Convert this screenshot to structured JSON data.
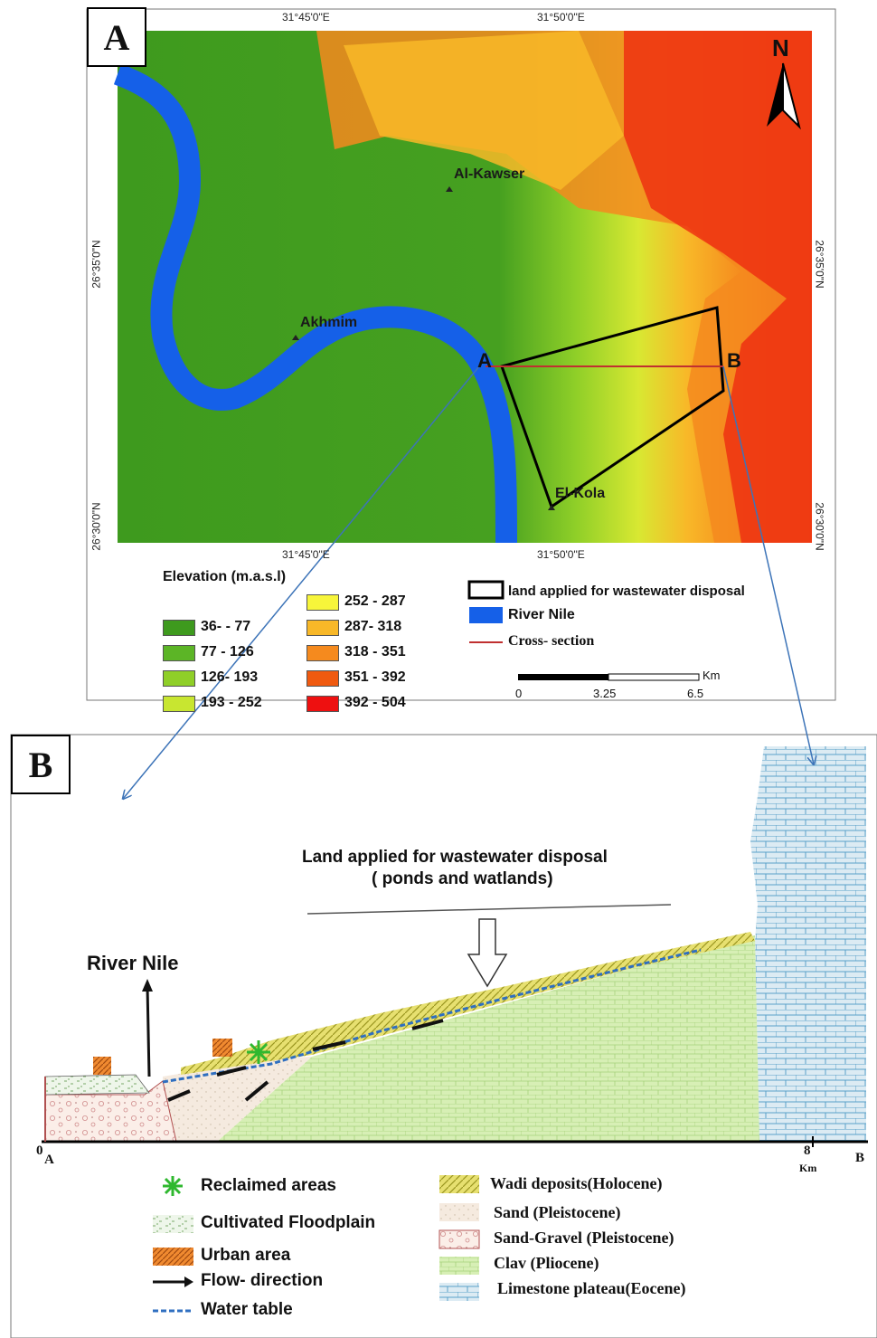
{
  "panels": {
    "a_tag": "A",
    "b_tag": "B"
  },
  "map": {
    "lon_ticks": [
      "31°45'0\"E",
      "31°50'0\"E"
    ],
    "lat_ticks": [
      "26°35'0\"N",
      "26°30'0\"N"
    ],
    "places": [
      "Al-Kawser",
      "Akhmim",
      "El-Kola"
    ],
    "north_label": "N",
    "section_points": [
      "A",
      "B"
    ],
    "colors": {
      "river": "#1560e8",
      "lowland": "#3e9a1e",
      "highland": "#f05a10"
    }
  },
  "elevation_legend": {
    "title": "Elevation (m.a.s.l)",
    "classes": [
      {
        "label": "36- - 77",
        "color": "#3e9a1e"
      },
      {
        "label": "77 - 126",
        "color": "#5cb526"
      },
      {
        "label": "126- 193",
        "color": "#8fcf28"
      },
      {
        "label": "193 - 252",
        "color": "#c8e630"
      },
      {
        "label": "252 - 287",
        "color": "#f7f53a"
      },
      {
        "label": "287- 318",
        "color": "#f8b828"
      },
      {
        "label": "318 - 351",
        "color": "#f58a1e"
      },
      {
        "label": "351 - 392",
        "color": "#f05a10"
      },
      {
        "label": "392 - 504",
        "color": "#ee1010"
      }
    ]
  },
  "map_legend": {
    "disposal": "land applied for wastewater disposal",
    "river": "River Nile",
    "cross_section": "Cross- section"
  },
  "scale_bar": {
    "unit": "Km",
    "ticks": [
      "0",
      "3.25",
      "6.5"
    ]
  },
  "cross_section": {
    "title_line1": "Land applied for wastewater disposal",
    "title_line2": "( ponds and watlands)",
    "river_label": "River Nile",
    "axis_start": "0",
    "axis_start_point": "A",
    "axis_end_value": "8",
    "axis_end_unit": "Km",
    "axis_end_point": "B"
  },
  "section_legend_left": [
    {
      "label": "Reclaimed areas",
      "icon": "reclaimed-star-icon"
    },
    {
      "label": "Cultivated Floodplain",
      "icon": "floodplain-pattern"
    },
    {
      "label": "Urban area",
      "icon": "urban-hatch"
    },
    {
      "label": "Flow- direction",
      "icon": "arrow-right-icon"
    },
    {
      "label": "Water table",
      "icon": "water-table-line"
    }
  ],
  "section_legend_right": [
    {
      "label": "Wadi deposits(Holocene)",
      "color": "#e7e070"
    },
    {
      "label": "Sand (Pleistocene)",
      "color": "#f5eadf"
    },
    {
      "label": "Sand-Gravel (Pleistocene)",
      "color": "#fbeee8"
    },
    {
      "label": "Clav (Pliocene)",
      "color": "#d7efb5"
    },
    {
      "label": "Limestone plateau(Eocene)",
      "color": "#dcebf3"
    }
  ]
}
